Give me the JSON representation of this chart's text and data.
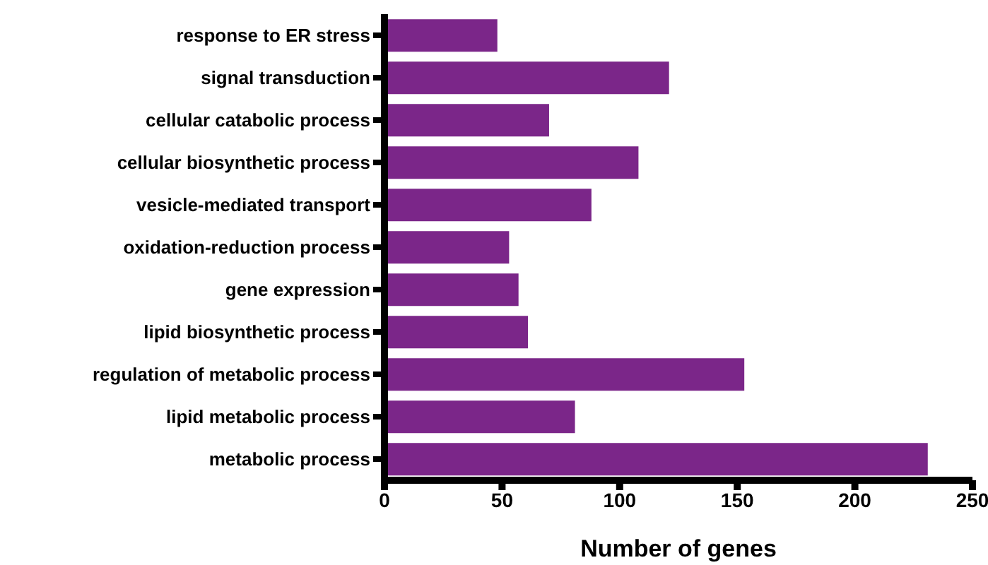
{
  "chart_data": {
    "type": "bar",
    "orientation": "horizontal",
    "xlabel": "Number of genes",
    "categories": [
      "response to ER stress",
      "signal transduction",
      "cellular catabolic process",
      "cellular biosynthetic process",
      "vesicle-mediated transport",
      "oxidation-reduction process",
      "gene expression",
      "lipid biosynthetic process",
      "regulation of metabolic process",
      "lipid metabolic process",
      "metabolic process"
    ],
    "values": [
      48,
      121,
      70,
      108,
      88,
      53,
      57,
      61,
      153,
      81,
      231
    ],
    "color": "#7b2689",
    "xlim": [
      0,
      250
    ],
    "xticks": [
      0,
      50,
      100,
      150,
      200,
      250
    ],
    "grid": false,
    "legend": false
  }
}
